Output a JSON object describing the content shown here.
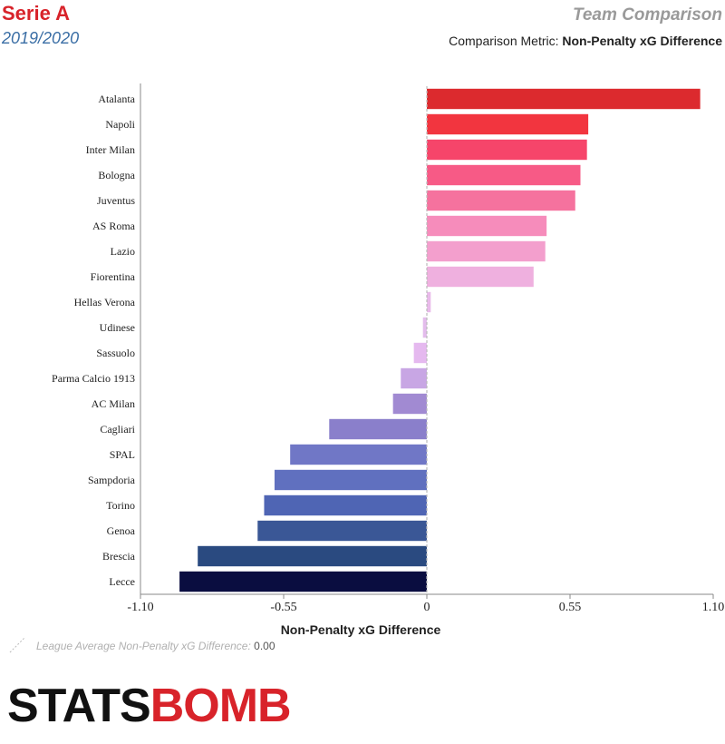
{
  "header": {
    "league": "Serie A",
    "season": "2019/2020",
    "view_title": "Team Comparison",
    "metric_prefix": "Comparison Metric: ",
    "metric_name": "Non-Penalty xG Difference"
  },
  "footer": {
    "average_label": "League Average Non-Penalty xG Difference: ",
    "average_value": "0.00",
    "logo_part1": "STATS",
    "logo_part2": "BOMB"
  },
  "colors": {
    "axis": "#888888",
    "average_line": "#bbbbbb",
    "brand_red": "#d8232a"
  },
  "chart_data": {
    "type": "bar",
    "orientation": "horizontal",
    "categories": [
      "Atalanta",
      "Napoli",
      "Inter Milan",
      "Bologna",
      "Juventus",
      "AS Roma",
      "Lazio",
      "Fiorentina",
      "Hellas Verona",
      "Udinese",
      "Sassuolo",
      "Parma Calcio 1913",
      "AC Milan",
      "Cagliari",
      "SPAL",
      "Sampdoria",
      "Torino",
      "Genoa",
      "Brescia",
      "Lecce"
    ],
    "values": [
      1.05,
      0.62,
      0.615,
      0.59,
      0.57,
      0.46,
      0.455,
      0.41,
      0.015,
      -0.015,
      -0.05,
      -0.1,
      -0.13,
      -0.375,
      -0.525,
      -0.585,
      -0.625,
      -0.65,
      -0.88,
      -0.95
    ],
    "bar_colors": [
      "#dc2a2e",
      "#f2353f",
      "#f6456a",
      "#f75a86",
      "#f5729e",
      "#f68cbb",
      "#f39fcd",
      "#efb0df",
      "#e9baea",
      "#e3bcec",
      "#e5b9ef",
      "#c8a6e4",
      "#a18ad2",
      "#8a7fcb",
      "#7077c6",
      "#6070bf",
      "#4f65b4",
      "#3a5796",
      "#2a4a80",
      "#0a0d40"
    ],
    "xlabel": "Non-Penalty xG Difference",
    "xlim": [
      -1.1,
      1.1
    ],
    "xticks": [
      -1.1,
      -0.55,
      0,
      0.55,
      1.1
    ],
    "xtick_labels": [
      "-1.10",
      "-0.55",
      "0",
      "0.55",
      "1.10"
    ],
    "average": 0.0,
    "grid": false
  }
}
